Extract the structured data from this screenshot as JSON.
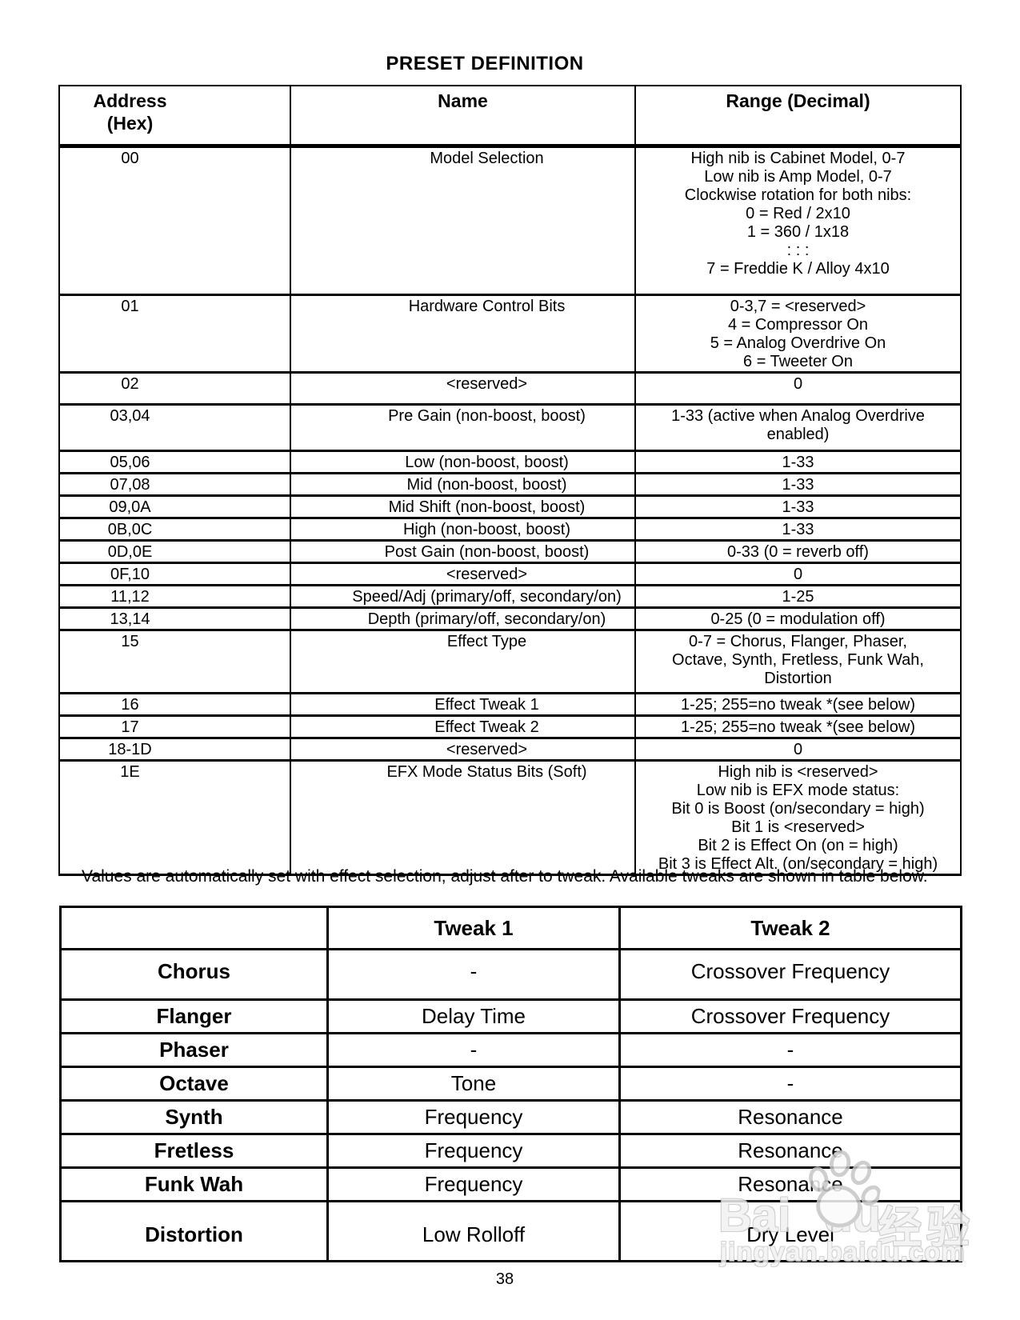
{
  "page": {
    "title": "PRESET DEFINITION",
    "note": "Values are automatically set with effect selection, adjust after to tweak. Available tweaks are shown in table below.",
    "page_number": "38"
  },
  "colors": {
    "page_bg": "#ffffff",
    "text": "#000000",
    "border": "#000000",
    "watermark_gray": "#c6c6c6"
  },
  "preset_table": {
    "header": {
      "address_line1": "Address",
      "address_line2": "(Hex)",
      "name": "Name",
      "range": "Range (Decimal)"
    },
    "rows": [
      {
        "address": "00",
        "name": "Model Selection",
        "range_lines": [
          "High nib is Cabinet Model, 0-7",
          "Low nib is Amp Model, 0-7",
          "Clockwise rotation for both nibs:",
          "0 = Red / 2x10",
          "1 = 360 / 1x18",
          ": : :",
          "7 = Freddie K / Alloy 4x10"
        ]
      },
      {
        "address": "01",
        "name": "Hardware Control Bits",
        "range_lines": [
          "0-3,7 = <reserved>",
          "4 = Compressor On",
          "5 = Analog Overdrive On",
          "6 = Tweeter On"
        ]
      },
      {
        "address": "02",
        "name": "<reserved>",
        "range_lines": [
          "0"
        ]
      },
      {
        "address": "03,04",
        "name": "Pre Gain (non-boost, boost)",
        "range_lines": [
          "1-33 (active when Analog Overdrive",
          "enabled)"
        ]
      },
      {
        "address": "05,06",
        "name": "Low (non-boost, boost)",
        "range_lines": [
          "1-33"
        ]
      },
      {
        "address": "07,08",
        "name": "Mid (non-boost, boost)",
        "range_lines": [
          "1-33"
        ]
      },
      {
        "address": "09,0A",
        "name": "Mid Shift (non-boost, boost)",
        "range_lines": [
          "1-33"
        ]
      },
      {
        "address": "0B,0C",
        "name": "High (non-boost, boost)",
        "range_lines": [
          "1-33"
        ]
      },
      {
        "address": "0D,0E",
        "name": "Post Gain (non-boost, boost)",
        "range_lines": [
          "0-33 (0 = reverb off)"
        ]
      },
      {
        "address": "0F,10",
        "name": "<reserved>",
        "range_lines": [
          "0"
        ]
      },
      {
        "address": "11,12",
        "name": "Speed/Adj (primary/off, secondary/on)",
        "range_lines": [
          "1-25"
        ]
      },
      {
        "address": "13,14",
        "name": "Depth (primary/off, secondary/on)",
        "range_lines": [
          "0-25 (0 = modulation off)"
        ]
      },
      {
        "address": "15",
        "name": "Effect Type",
        "range_lines": [
          "0-7 = Chorus, Flanger, Phaser,",
          "Octave, Synth, Fretless, Funk Wah,",
          "Distortion"
        ]
      },
      {
        "address": "16",
        "name": "Effect Tweak 1",
        "range_lines": [
          "1-25; 255=no tweak *(see below)"
        ]
      },
      {
        "address": "17",
        "name": "Effect Tweak 2",
        "range_lines": [
          "1-25; 255=no tweak *(see below)"
        ]
      },
      {
        "address": "18-1D",
        "name": "<reserved>",
        "range_lines": [
          "0"
        ]
      },
      {
        "address": "1E",
        "name": "EFX Mode Status Bits (Soft)",
        "range_lines": [
          "High nib is <reserved>",
          "Low nib is EFX mode status:",
          "Bit 0 is Boost (on/secondary = high)",
          "Bit 1 is <reserved>",
          "Bit 2 is Effect On (on = high)",
          "Bit 3 is Effect Alt. (on/secondary = high)"
        ]
      }
    ]
  },
  "tweak_table": {
    "headers": [
      "",
      "Tweak 1",
      "Tweak 2"
    ],
    "rows": [
      {
        "effect": "Chorus",
        "tweak1": "-",
        "tweak2": "Crossover Frequency"
      },
      {
        "effect": "Flanger",
        "tweak1": "Delay Time",
        "tweak2": "Crossover Frequency"
      },
      {
        "effect": "Phaser",
        "tweak1": "-",
        "tweak2": "-"
      },
      {
        "effect": "Octave",
        "tweak1": "Tone",
        "tweak2": "-"
      },
      {
        "effect": "Synth",
        "tweak1": "Frequency",
        "tweak2": "Resonance"
      },
      {
        "effect": "Fretless",
        "tweak1": "Frequency",
        "tweak2": "Resonance"
      },
      {
        "effect": "Funk Wah",
        "tweak1": "Frequency",
        "tweak2": "Resonance"
      },
      {
        "effect": "Distortion",
        "tweak1": "Low Rolloff",
        "tweak2": "Dry Level"
      }
    ]
  },
  "watermark": {
    "logo_left": "Bai",
    "logo_right": "du",
    "logo_cn": "经验",
    "url": "jingyan.baidu.com",
    "paw_icon": "baidu-paw-icon"
  }
}
